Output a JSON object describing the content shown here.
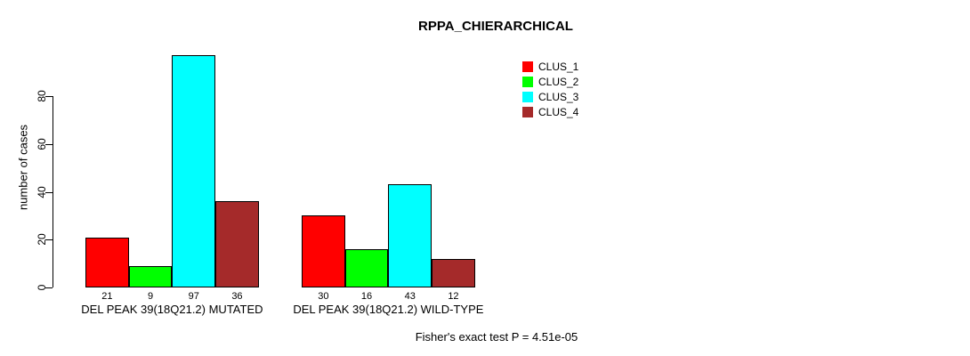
{
  "page": {
    "background": "#FFFFFF",
    "text_color": "#000000"
  },
  "chart_data": {
    "type": "bar",
    "title": "RPPA_CHIERARCHICAL",
    "ylabel": "number of cases",
    "xlabel": "",
    "annotation": "Fisher's exact test P = 4.51e-05",
    "categories": [
      "DEL PEAK 39(18Q21.2) MUTATED",
      "DEL PEAK 39(18Q21.2) WILD-TYPE"
    ],
    "series": [
      {
        "name": "CLUS_1",
        "color": "#FF0000",
        "values": [
          21,
          30
        ]
      },
      {
        "name": "CLUS_2",
        "color": "#00FF00",
        "values": [
          9,
          16
        ]
      },
      {
        "name": "CLUS_3",
        "color": "#00FFFF",
        "values": [
          97,
          43
        ]
      },
      {
        "name": "CLUS_4",
        "color": "#A52A2A",
        "values": [
          36,
          12
        ]
      }
    ],
    "yticks": [
      0,
      20,
      40,
      60,
      80
    ],
    "ylim": [
      0,
      97
    ],
    "grid": false,
    "bar_value_labels": true,
    "bar_border_color": "#000000",
    "legend": {
      "position": "top-right",
      "entries": [
        "CLUS_1",
        "CLUS_2",
        "CLUS_3",
        "CLUS_4"
      ]
    }
  }
}
